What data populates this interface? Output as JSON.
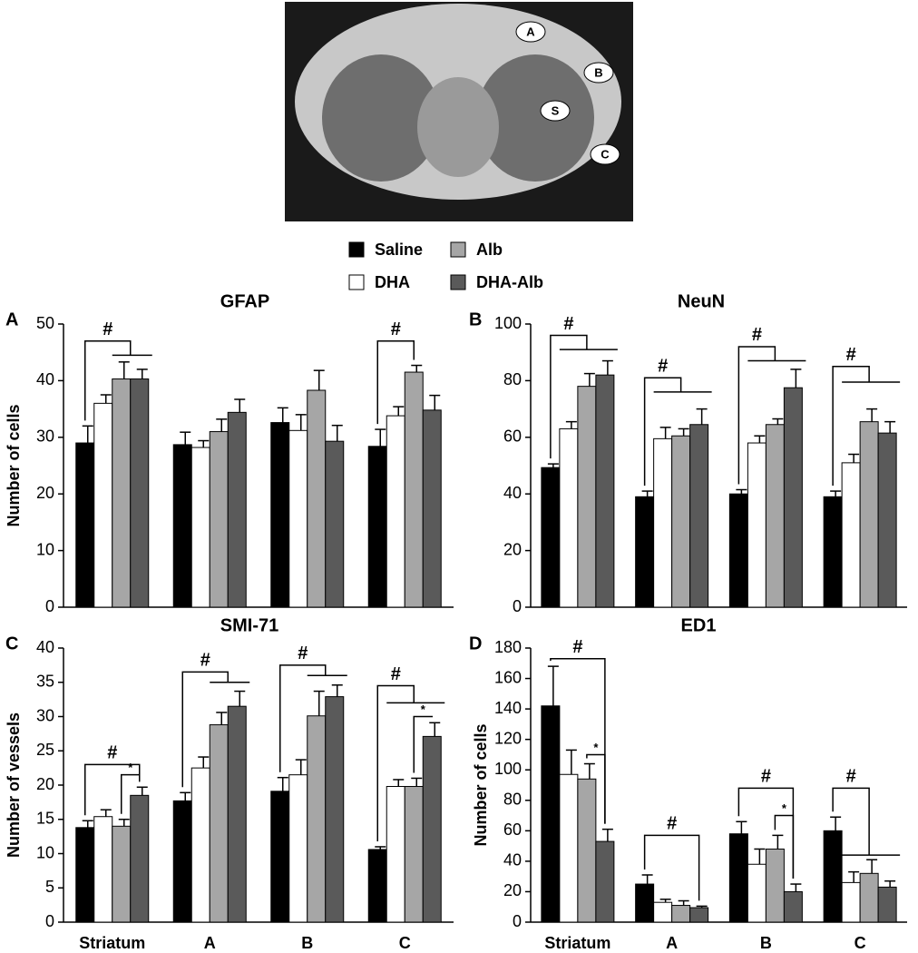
{
  "image": {
    "labels": [
      "A",
      "B",
      "S",
      "C"
    ]
  },
  "legend": {
    "series": [
      {
        "name": "Saline",
        "color": "#000000"
      },
      {
        "name": "DHA",
        "color": "#ffffff"
      },
      {
        "name": "Alb",
        "color": "#a6a6a6"
      },
      {
        "name": "DHA-Alb",
        "color": "#5a5a5a"
      }
    ]
  },
  "chart_data": [
    {
      "type": "bar",
      "panel": "A",
      "title": "GFAP",
      "ylabel": "Number of cells",
      "categories": [
        null,
        null,
        null,
        null
      ],
      "ylim": [
        0,
        50
      ],
      "yticks": [
        0,
        10,
        20,
        30,
        40,
        50
      ],
      "series": [
        {
          "values": [
            29,
            28.7,
            32.6,
            28.4
          ],
          "errors": [
            3,
            2.2,
            2.6,
            3
          ]
        },
        {
          "values": [
            36,
            28.2,
            31.2,
            33.8
          ],
          "errors": [
            1.5,
            1.2,
            2.8,
            1.6
          ]
        },
        {
          "values": [
            40.3,
            31,
            38.3,
            41.5
          ],
          "errors": [
            3,
            2.2,
            3.5,
            1.2
          ]
        },
        {
          "values": [
            40.3,
            34.4,
            29.3,
            34.8
          ],
          "errors": [
            1.7,
            2.3,
            2.8,
            2.6
          ]
        }
      ],
      "annotations": [
        {
          "text": "#",
          "group": 0,
          "from": 0,
          "to": [
            2,
            3
          ],
          "y": 47,
          "y_low": 44.5
        },
        {
          "text": "#",
          "group": 3,
          "from": 0,
          "to": [
            2
          ],
          "y": 47
        }
      ]
    },
    {
      "type": "bar",
      "panel": "B",
      "title": "NeuN",
      "categories": [
        null,
        null,
        null,
        null
      ],
      "ylim": [
        0,
        100
      ],
      "yticks": [
        0,
        20,
        40,
        60,
        80,
        100
      ],
      "series": [
        {
          "values": [
            49.3,
            39,
            40,
            39
          ],
          "errors": [
            1.3,
            2,
            1.5,
            2
          ]
        },
        {
          "values": [
            63,
            59.5,
            58,
            51
          ],
          "errors": [
            2.5,
            4,
            2.5,
            3
          ]
        },
        {
          "values": [
            78,
            60.5,
            64.5,
            65.5
          ],
          "errors": [
            4.5,
            2.5,
            2,
            4.5
          ]
        },
        {
          "values": [
            82,
            64.5,
            77.5,
            61.5
          ],
          "errors": [
            5,
            5.5,
            6.5,
            4
          ]
        }
      ],
      "annotations": [
        {
          "text": "#",
          "group": 0,
          "from": 0,
          "to": [
            1,
            3
          ],
          "y": 96,
          "y_low": 91
        },
        {
          "text": "#",
          "group": 1,
          "from": 0,
          "to": [
            1,
            3
          ],
          "y": 81,
          "y_low": 76
        },
        {
          "text": "#",
          "group": 2,
          "from": 0,
          "to": [
            1,
            3
          ],
          "y": 92,
          "y_low": 87
        },
        {
          "text": "#",
          "group": 3,
          "from": 0,
          "to": [
            1,
            3
          ],
          "y": 85,
          "y_low": 79.5
        }
      ]
    },
    {
      "type": "bar",
      "panel": "C",
      "title": "SMI-71",
      "ylabel": "Number of vessels",
      "categories": [
        "Striatum",
        "A",
        "B",
        "C"
      ],
      "ylim": [
        0,
        40
      ],
      "yticks": [
        0,
        5,
        10,
        15,
        20,
        25,
        30,
        35,
        40
      ],
      "series": [
        {
          "values": [
            13.8,
            17.7,
            19.1,
            10.6
          ],
          "errors": [
            1,
            1.2,
            2,
            0.4
          ]
        },
        {
          "values": [
            15.4,
            22.5,
            21.5,
            19.8
          ],
          "errors": [
            1,
            1.6,
            2.2,
            1
          ]
        },
        {
          "values": [
            14,
            28.8,
            30.1,
            19.8
          ],
          "errors": [
            1,
            1.8,
            3.6,
            1.2
          ]
        },
        {
          "values": [
            18.5,
            31.5,
            32.9,
            27.1
          ],
          "errors": [
            1.2,
            2.2,
            1.7,
            2
          ]
        }
      ],
      "annotations": [
        {
          "text": "#",
          "group": 0,
          "from": 0,
          "to": [
            3
          ],
          "y": 23
        },
        {
          "text": "*",
          "group": 0,
          "from": 2,
          "to": [
            3
          ],
          "y": 21.5
        },
        {
          "text": "#",
          "group": 1,
          "from": 0,
          "to": [
            2,
            3
          ],
          "y": 36.5,
          "y_low": 35
        },
        {
          "text": "#",
          "group": 2,
          "from": 0,
          "to": [
            2,
            3
          ],
          "y": 37.5,
          "y_low": 36
        },
        {
          "text": "#",
          "group": 3,
          "from": 0,
          "to": [
            1,
            3
          ],
          "y": 34.5,
          "y_low": 32
        },
        {
          "text": "*",
          "group": 3,
          "from": 2,
          "to": [
            3
          ],
          "y": 30
        }
      ]
    },
    {
      "type": "bar",
      "panel": "D",
      "title": "ED1",
      "ylabel": "Number of cells",
      "categories": [
        "Striatum",
        "A",
        "B",
        "C"
      ],
      "ylim": [
        0,
        180
      ],
      "yticks": [
        0,
        20,
        40,
        60,
        80,
        100,
        120,
        140,
        160,
        180
      ],
      "series": [
        {
          "values": [
            142,
            25,
            58,
            60
          ],
          "errors": [
            26,
            6,
            8,
            9
          ]
        },
        {
          "values": [
            97,
            13,
            38,
            26
          ],
          "errors": [
            16,
            2,
            10,
            7
          ]
        },
        {
          "values": [
            94,
            11,
            48,
            32
          ],
          "errors": [
            10,
            3,
            9,
            9
          ]
        },
        {
          "values": [
            53,
            9.5,
            20,
            23
          ],
          "errors": [
            8,
            1,
            5,
            4
          ]
        }
      ],
      "annotations": [
        {
          "text": "#",
          "group": 0,
          "from": 0,
          "to": [
            3
          ],
          "y": 173
        },
        {
          "text": "*",
          "group": 0,
          "from": 2,
          "to": [
            3
          ],
          "y": 110
        },
        {
          "text": "#",
          "group": 1,
          "from": 0,
          "to": [
            3
          ],
          "y": 57
        },
        {
          "text": "#",
          "group": 2,
          "from": 0,
          "to": [
            3
          ],
          "y": 88
        },
        {
          "text": "*",
          "group": 2,
          "from": 2,
          "to": [
            3
          ],
          "y": 70
        },
        {
          "text": "#",
          "group": 3,
          "from": 0,
          "to": [
            1,
            3
          ],
          "y": 88,
          "y_low": 44
        }
      ]
    }
  ]
}
